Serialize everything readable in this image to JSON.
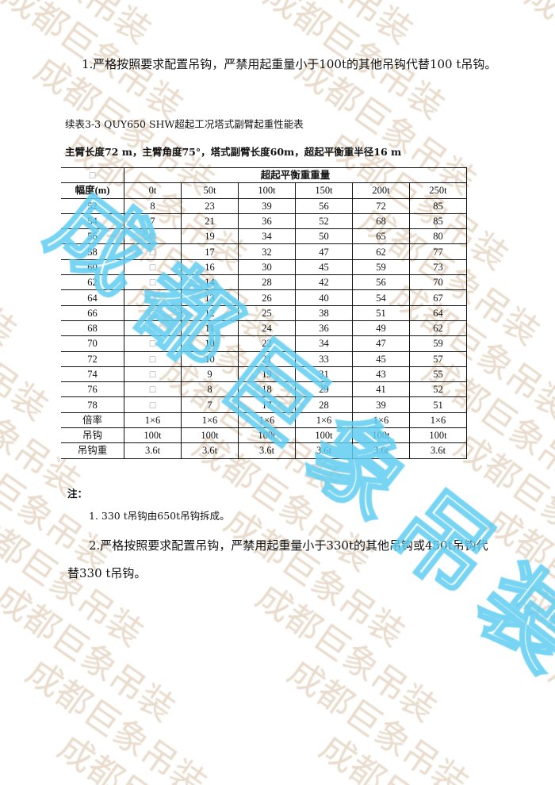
{
  "watermark_text": "成都巨象吊装",
  "note_top": "1.严格按照要求配置吊钩，严禁用起重量小于100t的其他吊钩代替100 t吊钩。",
  "table_title": "续表3-3 QUY650 SHW超起工况塔式副臂起重性能表",
  "table_subtitle": "主臂长度72 m，主臂角度75°，塔式副臂长度60m，超起平衡重半径16 m",
  "table": {
    "corner": "□",
    "group_header": "超起平衡重重量",
    "radius_header": "幅度(m)",
    "columns": [
      "0t",
      "50t",
      "100t",
      "150t",
      "200t",
      "250t"
    ],
    "rows": [
      [
        "52",
        "8",
        "23",
        "39",
        "56",
        "72",
        "85"
      ],
      [
        "54",
        "7",
        "21",
        "36",
        "52",
        "68",
        "85"
      ],
      [
        "56",
        "□",
        "19",
        "34",
        "50",
        "65",
        "80"
      ],
      [
        "58",
        "□",
        "17",
        "32",
        "47",
        "62",
        "77"
      ],
      [
        "60",
        "□",
        "16",
        "30",
        "45",
        "59",
        "73"
      ],
      [
        "62",
        "□",
        "14",
        "28",
        "42",
        "56",
        "70"
      ],
      [
        "64",
        "□",
        "13",
        "26",
        "40",
        "54",
        "67"
      ],
      [
        "66",
        "□",
        "12",
        "25",
        "38",
        "51",
        "64"
      ],
      [
        "68",
        "□",
        "11",
        "24",
        "36",
        "49",
        "62"
      ],
      [
        "70",
        "□",
        "10",
        "22",
        "34",
        "47",
        "59"
      ],
      [
        "72",
        "□",
        "10",
        "21",
        "33",
        "45",
        "57"
      ],
      [
        "74",
        "□",
        "9",
        "19",
        "31",
        "43",
        "55"
      ],
      [
        "76",
        "□",
        "8",
        "18",
        "29",
        "41",
        "52"
      ],
      [
        "78",
        "□",
        "7",
        "17",
        "28",
        "39",
        "51"
      ],
      [
        "倍率",
        "1×6",
        "1×6",
        "1×6",
        "1×6",
        "1×6",
        "1×6"
      ],
      [
        "吊钩",
        "100t",
        "100t",
        "100t",
        "100t",
        "100t",
        "100t"
      ],
      [
        "吊钩重",
        "3.6t",
        "3.6t",
        "3.6t",
        "3.6t",
        "3.6t",
        "3.6t"
      ]
    ]
  },
  "notes": {
    "label": "注：",
    "items": [
      "1. 330 t吊钩由650t吊钩拆成。",
      "2.严格按照要求配置吊钩，严禁用起重量小于330t的其他吊钩或450t吊钩代",
      "替330 t吊钩。"
    ]
  },
  "colors": {
    "watermark": "#e9dccd",
    "stamp": "#5fcdf0"
  }
}
